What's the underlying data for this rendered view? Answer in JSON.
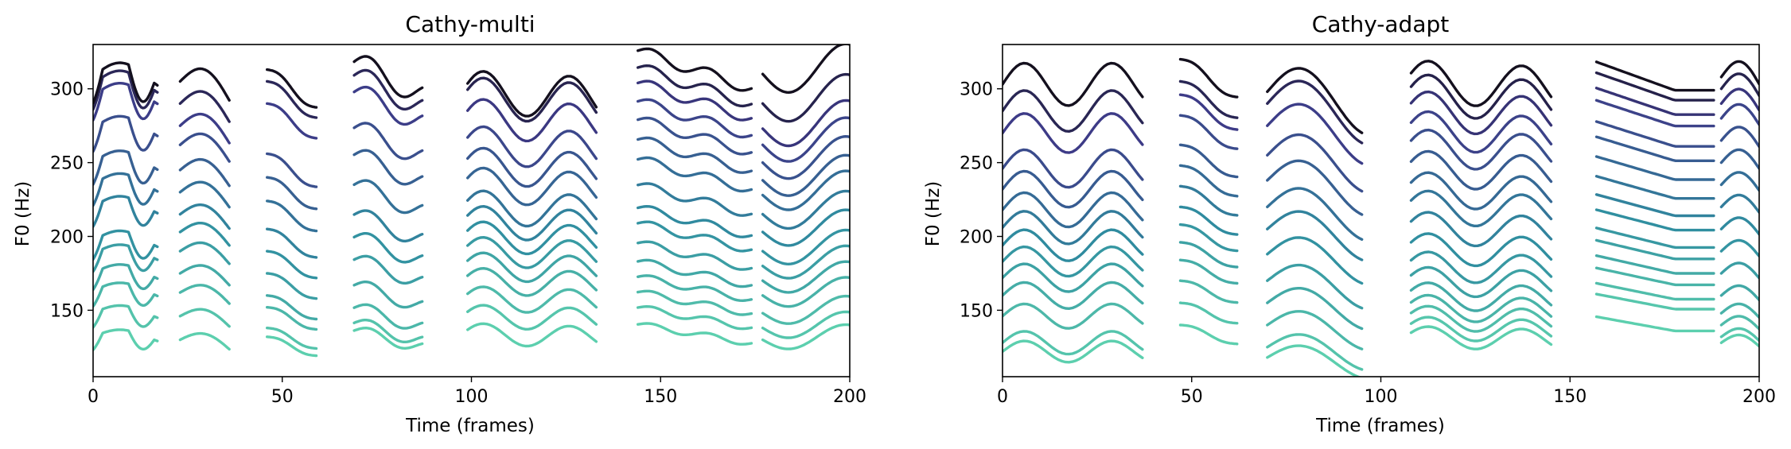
{
  "chart_data": [
    {
      "type": "line",
      "title": "Cathy-multi",
      "xlabel": "Time (frames)",
      "ylabel": "F0 (Hz)",
      "xlim": [
        0,
        200
      ],
      "ylim": [
        105,
        330
      ],
      "xticks": [
        0,
        50,
        100,
        150,
        200
      ],
      "yticks": [
        150,
        200,
        250,
        300
      ],
      "grid": false,
      "palette": {
        "low": "#5ccfae",
        "mid": "#2f8da0",
        "high": "#3d3a87",
        "top": "#14101e"
      },
      "segments": [
        {
          "x_range": [
            0,
            17
          ],
          "ends": [
            132,
            148,
            163,
            175,
            188,
            197,
            220,
            235,
            250,
            273,
            295,
            303,
            308
          ],
          "shape": "dip"
        },
        {
          "x_range": [
            23,
            36
          ],
          "ends": [
            130,
            146,
            162,
            175,
            190,
            203,
            215,
            230,
            245,
            262,
            275,
            290,
            305
          ],
          "shape": "bump"
        },
        {
          "x_range": [
            46,
            59
          ],
          "ends": [
            132,
            138,
            152,
            160,
            175,
            190,
            205,
            224,
            240,
            256,
            290,
            305,
            313
          ],
          "shape": "fall"
        },
        {
          "x_range": [
            69,
            87
          ],
          "ends": [
            133,
            138,
            148,
            163,
            180,
            195,
            210,
            230,
            250,
            268,
            292,
            303,
            312
          ],
          "shape": "fall-dip"
        },
        {
          "x_range": [
            99,
            133
          ],
          "ends": [
            134,
            146,
            158,
            170,
            180,
            190,
            200,
            210,
            220,
            235,
            248,
            262,
            280,
            294,
            298
          ],
          "shape": "wave"
        },
        {
          "x_range": [
            144,
            174
          ],
          "ends": [
            134,
            145,
            155,
            165,
            175,
            187,
            200,
            210,
            225,
            242,
            255,
            268,
            280,
            292,
            302,
            313
          ],
          "shape": "fall-wave"
        },
        {
          "x_range": [
            177,
            200
          ],
          "ends": [
            130,
            138,
            148,
            160,
            170,
            180,
            190,
            203,
            215,
            228,
            238,
            250,
            262,
            273,
            290,
            310
          ],
          "shape": "dip-rise"
        }
      ]
    },
    {
      "type": "line",
      "title": "Cathy-adapt",
      "xlabel": "Time (frames)",
      "ylabel": "F0 (Hz)",
      "xlim": [
        0,
        200
      ],
      "ylim": [
        105,
        330
      ],
      "xticks": [
        0,
        50,
        100,
        150,
        200
      ],
      "yticks": [
        150,
        200,
        250,
        300
      ],
      "grid": false,
      "palette": {
        "low": "#5ccfae",
        "mid": "#2f8da0",
        "high": "#3d3a87",
        "top": "#14101e"
      },
      "segments": [
        {
          "x_range": [
            0,
            37
          ],
          "ends": [
            122,
            128,
            146,
            160,
            172,
            183,
            194,
            206,
            218,
            232,
            246,
            270,
            285,
            303
          ],
          "shape": "double-bump"
        },
        {
          "x_range": [
            47,
            62
          ],
          "ends": [
            140,
            155,
            170,
            184,
            196,
            208,
            220,
            234,
            248,
            262,
            282,
            296,
            305,
            320
          ],
          "shape": "fall"
        },
        {
          "x_range": [
            70,
            95
          ],
          "ends": [
            118,
            125,
            140,
            155,
            170,
            188,
            205,
            220,
            238,
            255,
            275,
            290,
            298
          ],
          "shape": "bump-fall"
        },
        {
          "x_range": [
            108,
            145
          ],
          "ends": [
            132,
            138,
            145,
            152,
            160,
            170,
            180,
            192,
            206,
            220,
            232,
            246,
            260,
            272,
            285,
            296,
            305
          ],
          "shape": "wave"
        },
        {
          "x_range": [
            157,
            188
          ],
          "ends": [
            140,
            155,
            162,
            172,
            180,
            190,
            198,
            210,
            220,
            232,
            245,
            258,
            268,
            282,
            290,
            300,
            307
          ],
          "shape": "fall-flat"
        },
        {
          "x_range": [
            190,
            200
          ],
          "ends": [
            128,
            132,
            140,
            148,
            160,
            175,
            190,
            205,
            220,
            235,
            250,
            265,
            280,
            290,
            300,
            308
          ],
          "shape": "rise"
        }
      ]
    }
  ]
}
